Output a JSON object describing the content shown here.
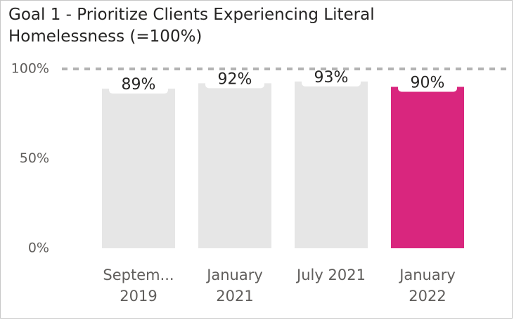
{
  "chart_data": {
    "type": "bar",
    "title": "Goal 1 - Prioritize Clients Experiencing Literal Homelessness (=100%)",
    "categories": [
      "Septem... 2019",
      "January 2021",
      "July 2021",
      "January 2022"
    ],
    "values": [
      89,
      92,
      93,
      90
    ],
    "value_labels": [
      "89%",
      "92%",
      "93%",
      "90%"
    ],
    "colors": [
      "#e6e6e6",
      "#e6e6e6",
      "#e6e6e6",
      "#d9267e"
    ],
    "ylim": [
      0,
      100
    ],
    "yticks": [
      {
        "value": 0,
        "label": "0%"
      },
      {
        "value": 50,
        "label": "50%"
      },
      {
        "value": 100,
        "label": "100%"
      }
    ],
    "reference_line": 100,
    "grid": false
  }
}
